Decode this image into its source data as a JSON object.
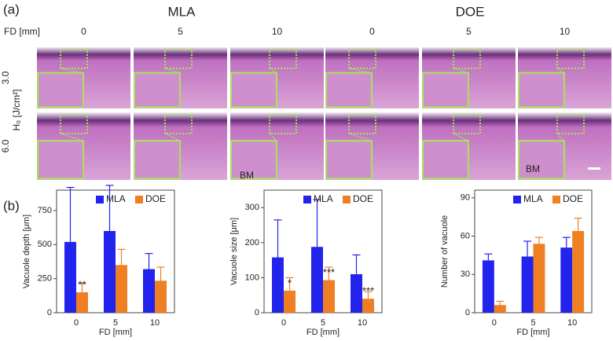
{
  "panel_a": {
    "label": "(a)",
    "groups": [
      "MLA",
      "DOE"
    ],
    "column_axis": "FD [mm]",
    "columns": [
      "0",
      "5",
      "10",
      "0",
      "5",
      "10"
    ],
    "row_axis": "H₀ [J/cm²]",
    "rows": [
      "3.0",
      "6.0"
    ],
    "annotations": [
      "BM",
      "BM"
    ]
  },
  "panel_b": {
    "label": "(b)"
  },
  "chart_data": [
    {
      "type": "bar",
      "y_label": "Vacuole depth [μm]",
      "x_label": "FD [mm]",
      "categories": [
        "0",
        "5",
        "10"
      ],
      "series": [
        {
          "name": "MLA",
          "color": "#2323ee",
          "values": [
            520,
            600,
            320
          ],
          "errors": [
            400,
            335,
            115
          ]
        },
        {
          "name": "DOE",
          "color": "#ee7f22",
          "values": [
            150,
            350,
            235
          ],
          "errors": [
            65,
            115,
            100
          ]
        }
      ],
      "significance": [
        "**",
        null,
        null
      ],
      "ylim": [
        0,
        900
      ],
      "yticks": [
        0,
        250,
        500,
        750
      ],
      "legend": "upper right"
    },
    {
      "type": "bar",
      "y_label": "Vacuole size [μm]",
      "x_label": "FD [mm]",
      "categories": [
        "0",
        "5",
        "10"
      ],
      "series": [
        {
          "name": "MLA",
          "color": "#2323ee",
          "values": [
            158,
            188,
            110
          ],
          "errors": [
            107,
            135,
            55
          ]
        },
        {
          "name": "DOE",
          "color": "#ee7f22",
          "values": [
            63,
            93,
            40
          ],
          "errors": [
            37,
            37,
            20
          ]
        }
      ],
      "significance": [
        "*",
        "***",
        "***"
      ],
      "ylim": [
        0,
        350
      ],
      "yticks": [
        0,
        100,
        200,
        300
      ],
      "legend": "upper right"
    },
    {
      "type": "bar",
      "y_label": "Number of vacuole",
      "x_label": "FD [mm]",
      "categories": [
        "0",
        "5",
        "10"
      ],
      "series": [
        {
          "name": "MLA",
          "color": "#2323ee",
          "values": [
            41,
            44,
            51
          ],
          "errors": [
            5,
            12,
            8
          ]
        },
        {
          "name": "DOE",
          "color": "#ee7f22",
          "values": [
            6,
            54,
            64
          ],
          "errors": [
            3,
            5,
            10
          ]
        }
      ],
      "ylim": [
        0,
        96
      ],
      "yticks": [
        0,
        30,
        60,
        90
      ],
      "legend": "upper right"
    }
  ]
}
